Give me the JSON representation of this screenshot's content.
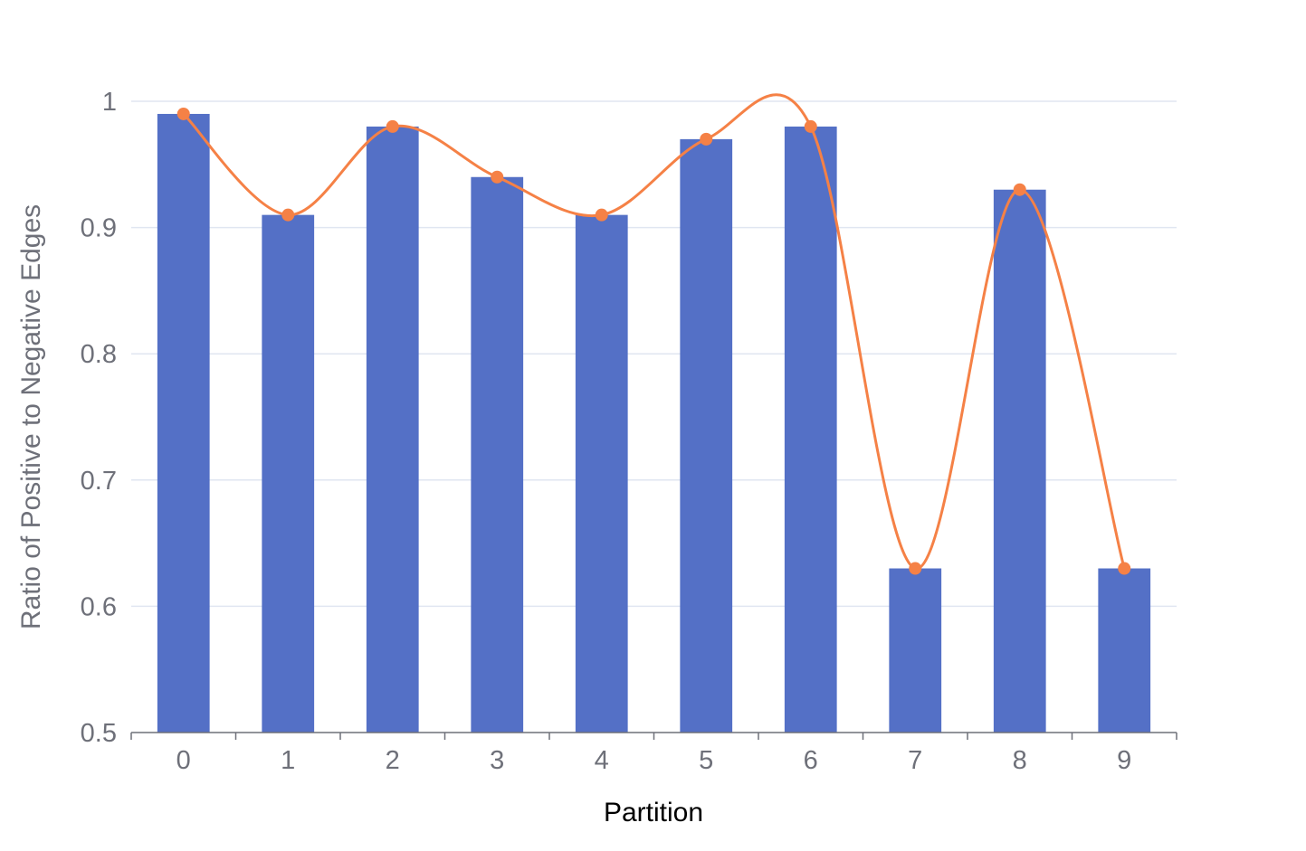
{
  "chart_data": {
    "type": "bar",
    "title": "",
    "xlabel": "Partition",
    "ylabel": "Ratio of Positive to Negative Edges",
    "categories": [
      "0",
      "1",
      "2",
      "3",
      "4",
      "5",
      "6",
      "7",
      "8",
      "9"
    ],
    "values": [
      0.99,
      0.91,
      0.98,
      0.94,
      0.91,
      0.97,
      0.98,
      0.63,
      0.93,
      0.63
    ],
    "overlay_line": {
      "type": "line",
      "smooth": true,
      "values": [
        0.99,
        0.91,
        0.98,
        0.94,
        0.91,
        0.97,
        0.98,
        0.63,
        0.93,
        0.63
      ]
    },
    "ylim": [
      0.5,
      1
    ],
    "yticks": [
      "0.5",
      "0.6",
      "0.7",
      "0.8",
      "0.9",
      "1"
    ],
    "grid": true,
    "legend": "none",
    "colors": {
      "bar": "#5470c6",
      "line": "#f58146",
      "grid": "#e0e6f1",
      "axis": "#6e7079"
    }
  }
}
